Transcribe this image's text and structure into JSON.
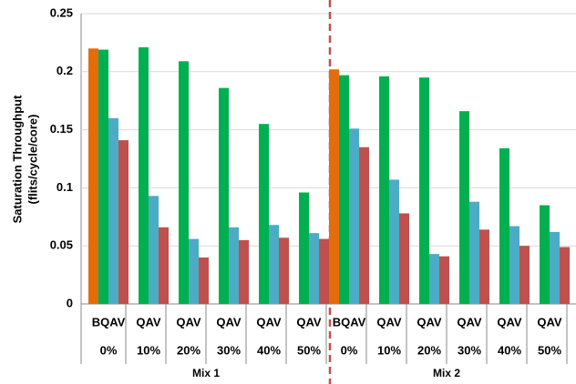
{
  "chart_data": {
    "type": "bar",
    "y_label": [
      "Saturation Throughput",
      "(flits/cycle/core)"
    ],
    "groups": [
      {
        "name": "Mix 1",
        "categories": [
          "BQAV",
          "QAV",
          "QAV",
          "QAV",
          "QAV",
          "QAV"
        ],
        "rates": [
          "0%",
          "10%",
          "20%",
          "30%",
          "40%",
          "50%"
        ]
      },
      {
        "name": "Mix 2",
        "categories": [
          "BQAV",
          "QAV",
          "QAV",
          "QAV",
          "QAV",
          "QAV"
        ],
        "rates": [
          "0%",
          "10%",
          "20%",
          "30%",
          "40%",
          "50%"
        ]
      }
    ],
    "series": [
      {
        "color": "#E46C0A",
        "values": [
          0.22,
          null,
          null,
          null,
          null,
          null,
          0.202,
          null,
          null,
          null,
          null,
          null
        ]
      },
      {
        "color": "#00B050",
        "values": [
          0.219,
          0.221,
          0.209,
          0.186,
          0.155,
          0.096,
          0.197,
          0.196,
          0.195,
          0.166,
          0.134,
          0.085
        ]
      },
      {
        "color": "#4BACC6",
        "values": [
          0.16,
          0.093,
          0.056,
          0.066,
          0.068,
          0.061,
          0.151,
          0.107,
          0.043,
          0.088,
          0.067,
          0.062
        ]
      },
      {
        "color": "#C0504D",
        "values": [
          0.141,
          0.066,
          0.04,
          0.055,
          0.057,
          0.056,
          0.135,
          0.078,
          0.041,
          0.064,
          0.05,
          0.049
        ]
      }
    ],
    "ylim": [
      0,
      0.25
    ],
    "yticks": [
      0,
      0.05,
      0.1,
      0.15,
      0.2,
      0.25
    ],
    "grid": true
  }
}
